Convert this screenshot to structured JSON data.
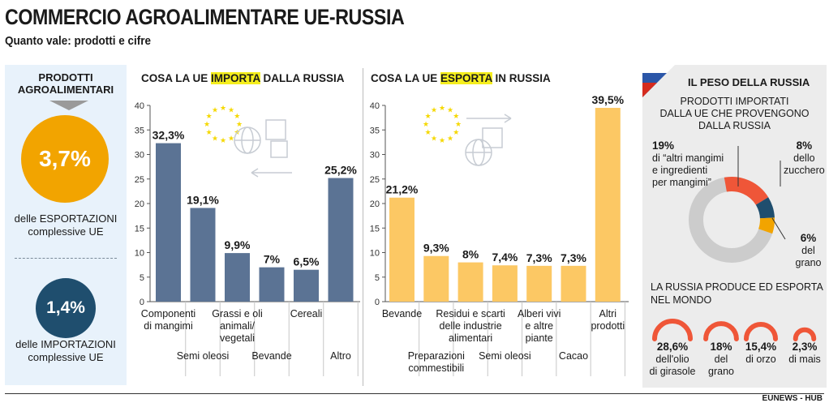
{
  "header": {
    "title": "COMMERCIO AGROALIMENTARE UE-RUSSIA",
    "subtitle": "Quanto vale: prodotti e cifre"
  },
  "left_panel": {
    "heading_line1": "PRODOTTI",
    "heading_line2": "AGROALIMENTARI",
    "export_value": "3,7%",
    "export_caption_line1": "delle ESPORTAZIONI",
    "export_caption_line2": "complessive UE",
    "import_value": "1,4%",
    "import_caption_line1": "delle IMPORTAZIONI",
    "import_caption_line2": "complessive UE",
    "colors": {
      "export": "#f2a400",
      "import": "#1f4e6e",
      "background": "#e8f2fb"
    }
  },
  "chart_data": [
    {
      "type": "bar",
      "title_prefix": "COSA LA UE ",
      "title_highlight": "IMPORTA",
      "title_suffix": " DALLA RUSSIA",
      "categories": [
        "Componenti di mangimi",
        "Semi oleosi",
        "Grassi e oli animali/ vegetali",
        "Bevande",
        "Cereali",
        "Altro"
      ],
      "values": [
        32.3,
        19.1,
        9.9,
        7,
        6.5,
        25.2
      ],
      "value_labels": [
        "32,3%",
        "19,1%",
        "9,9%",
        "7%",
        "6,5%",
        "25,2%"
      ],
      "ylim": [
        0,
        40
      ],
      "yticks": [
        0,
        5,
        10,
        15,
        20,
        25,
        30,
        35,
        40
      ],
      "ytick_labels": [
        "0",
        "5",
        "10",
        "15",
        "20",
        "25",
        "30",
        "35",
        "40"
      ],
      "color": "#5b7394",
      "grid": false
    },
    {
      "type": "bar",
      "title_prefix": "COSA LA UE ",
      "title_highlight": "ESPORTA",
      "title_suffix": " IN RUSSIA",
      "categories": [
        "Bevande",
        "Preparazioni commestibili",
        "Residui e scarti delle industrie alimentari",
        "Semi oleosi",
        "Alberi vivi e altre piante",
        "Cacao",
        "Altri prodotti"
      ],
      "values": [
        21.2,
        9.3,
        8,
        7.4,
        7.3,
        7.3,
        39.5
      ],
      "value_labels": [
        "21,2%",
        "9,3%",
        "8%",
        "7,4%",
        "7,3%",
        "7,3%",
        "39,5%"
      ],
      "ylim": [
        0,
        40
      ],
      "yticks": [
        0,
        5,
        10,
        15,
        20,
        25,
        30,
        35,
        40
      ],
      "ytick_labels": [
        "0",
        "5",
        "10",
        "15",
        "20",
        "25",
        "30",
        "35",
        "40"
      ],
      "color": "#fcc864",
      "grid": false
    },
    {
      "type": "pie",
      "title": "IL PESO DELLA RUSSIA",
      "subtitle": "PRODOTTI IMPORTATI DALLA UE CHE PROVENGONO DALLA RUSSIA",
      "slices": [
        {
          "value": 19,
          "label": "19%",
          "desc": "di “altri mangimi e ingredienti per mangimi”",
          "color": "#ef5638"
        },
        {
          "value": 8,
          "label": "8%",
          "desc": "dello zucchero",
          "color": "#1f4e6e"
        },
        {
          "value": 6,
          "label": "6%",
          "desc": "del grano",
          "color": "#f2a400"
        }
      ],
      "remainder_color": "#cccccc"
    },
    {
      "type": "bar",
      "title": "LA RUSSIA PRODUCE ED ESPORTA NEL MONDO",
      "items": [
        {
          "value": 28.6,
          "label": "28,6%",
          "desc": "dell'olio di girasole"
        },
        {
          "value": 18,
          "label": "18%",
          "desc": "del grano"
        },
        {
          "value": 15.4,
          "label": "15,4%",
          "desc": "di orzo"
        },
        {
          "value": 2.3,
          "label": "2,3%",
          "desc": "di mais"
        }
      ],
      "color": "#ef5638"
    }
  ],
  "right_panel": {
    "title": "IL PESO DELLA RUSSIA",
    "sub_line1": "PRODOTTI IMPORTATI",
    "sub_line2": "DALLA UE CHE PROVENGONO",
    "sub_line3": "DALLA RUSSIA",
    "s1_value": "19%",
    "s1_line1": "di “altri mangimi",
    "s1_line2": "e ingredienti",
    "s1_line3": "per mangimi”",
    "s2_value": "8%",
    "s2_line1": "dello",
    "s2_line2": "zucchero",
    "s3_value": "6%",
    "s3_line1": "del grano",
    "section_line1": "LA RUSSIA PRODUCE ED ESPORTA",
    "section_line2": "NEL MONDO",
    "a1_value": "28,6%",
    "a1_line1": "dell'olio",
    "a1_line2": "di girasole",
    "a2_value": "18%",
    "a2_line1": "del",
    "a2_line2": "grano",
    "a3_value": "15,4%",
    "a3_line1": "di orzo",
    "a4_value": "2,3%",
    "a4_line1": "di mais"
  },
  "footer": {
    "credit": "EUNEWS - HUB"
  }
}
